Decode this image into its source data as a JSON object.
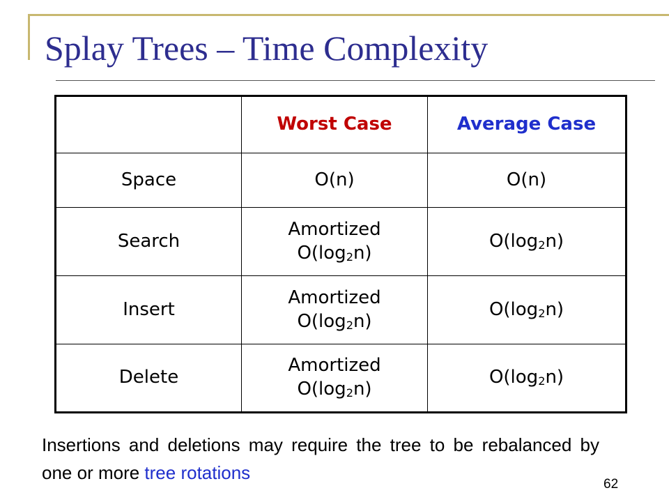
{
  "title": "Splay Trees – Time Complexity",
  "table": {
    "headers": [
      "",
      "Worst Case",
      "Average Case"
    ],
    "header_colors": {
      "worst": "#c00000",
      "average": "#1f2fcc"
    },
    "rows": [
      {
        "label": "Space",
        "worst": "O(n)",
        "average": "O(n)"
      },
      {
        "label": "Search",
        "worst_prefix": "Amortized",
        "worst": {
          "pre": "O(log",
          "sub": "2",
          "post": "n)"
        },
        "average": {
          "pre": "O(log",
          "sub": "2",
          "post": "n)"
        }
      },
      {
        "label": "Insert",
        "worst_prefix": "Amortized",
        "worst": {
          "pre": "O(log",
          "sub": "2",
          "post": "n)"
        },
        "average": {
          "pre": "O(log",
          "sub": "2",
          "post": "n)"
        }
      },
      {
        "label": "Delete",
        "worst_prefix": "Amortized",
        "worst": {
          "pre": "O(log",
          "sub": "2",
          "post": "n)"
        },
        "average": {
          "pre": "O(log",
          "sub": "2",
          "post": "n)"
        }
      }
    ]
  },
  "note": {
    "text": "Insertions and deletions may require the tree to be rebalanced by one or more",
    "highlight": "tree rotations",
    "highlight_color": "#1f2fcc"
  },
  "slide_number": "62"
}
